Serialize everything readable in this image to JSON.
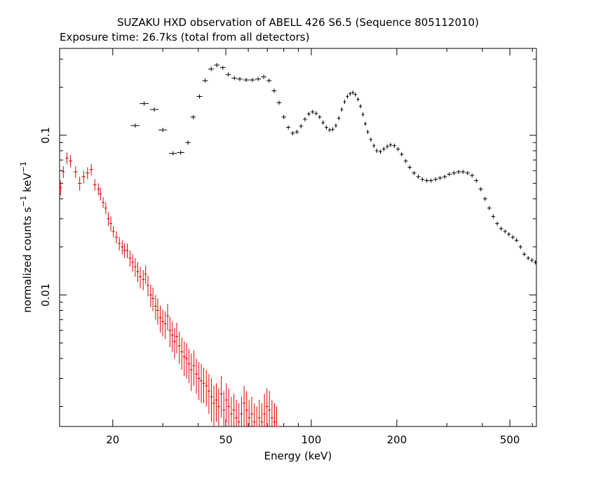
{
  "title": "SUZAKU HXD observation of ABELL 426 S6.5 (Sequence 805112010)",
  "subtitle": "Exposure time: 26.7ks (total from all detectors)",
  "chart_data": {
    "type": "scatter",
    "title": "SUZAKU HXD observation of ABELL 426 S6.5 (Sequence 805112010)",
    "subtitle": "Exposure time: 26.7ks (total from all detectors)",
    "xlabel": "Energy (keV)",
    "ylabel": "normalized counts s-1 keV-1",
    "ylabel_parts": {
      "pre": "normalized counts s",
      "sup1": "−1",
      "mid": " keV",
      "sup2": "−1"
    },
    "x_scale": "log",
    "y_scale": "log",
    "xlim": [
      13,
      620
    ],
    "ylim": [
      0.0015,
      0.35
    ],
    "x_ticks": [
      20,
      50,
      100,
      200,
      500
    ],
    "x_tick_labels": [
      "20",
      "50",
      "100",
      "200",
      "500"
    ],
    "y_ticks": [
      0.01,
      0.1
    ],
    "y_tick_labels": [
      "0.01",
      "0.1"
    ],
    "grid": false,
    "series": [
      {
        "color": "#dd0000",
        "points": [
          [
            13.1,
            0.047,
            0.005
          ],
          [
            13.4,
            0.059,
            0.005
          ],
          [
            13.8,
            0.072,
            0.006
          ],
          [
            14.2,
            0.069,
            0.006
          ],
          [
            14.8,
            0.059,
            0.005
          ],
          [
            15.3,
            0.05,
            0.005
          ],
          [
            15.8,
            0.055,
            0.005
          ],
          [
            16.3,
            0.058,
            0.005
          ],
          [
            16.8,
            0.061,
            0.005
          ],
          [
            17.3,
            0.049,
            0.004
          ],
          [
            17.8,
            0.046,
            0.004
          ],
          [
            18.1,
            0.043,
            0.004
          ],
          [
            18.5,
            0.038,
            0.003
          ],
          [
            18.9,
            0.035,
            0.003
          ],
          [
            19.3,
            0.03,
            0.003
          ],
          [
            19.7,
            0.028,
            0.003
          ],
          [
            20.1,
            0.025,
            0.002
          ],
          [
            20.6,
            0.023,
            0.002
          ],
          [
            21.1,
            0.021,
            0.002
          ],
          [
            21.6,
            0.02,
            0.002
          ],
          [
            22.0,
            0.019,
            0.002
          ],
          [
            22.5,
            0.019,
            0.002
          ],
          [
            23.0,
            0.017,
            0.002
          ],
          [
            23.5,
            0.016,
            0.002
          ],
          [
            24.0,
            0.015,
            0.002
          ],
          [
            24.5,
            0.014,
            0.002
          ],
          [
            25.0,
            0.013,
            0.002
          ],
          [
            25.6,
            0.0125,
            0.0018
          ],
          [
            26.1,
            0.0135,
            0.0018
          ],
          [
            26.6,
            0.0115,
            0.0017
          ],
          [
            27.2,
            0.01,
            0.0016
          ],
          [
            27.7,
            0.0095,
            0.0016
          ],
          [
            28.3,
            0.0085,
            0.0015
          ],
          [
            28.8,
            0.008,
            0.0015
          ],
          [
            29.4,
            0.0072,
            0.0014
          ],
          [
            30.0,
            0.0068,
            0.0013
          ],
          [
            30.6,
            0.0066,
            0.0013
          ],
          [
            31.2,
            0.0074,
            0.0014
          ],
          [
            31.8,
            0.006,
            0.0013
          ],
          [
            32.4,
            0.0056,
            0.0012
          ],
          [
            33.0,
            0.0051,
            0.0011
          ],
          [
            33.6,
            0.0055,
            0.0012
          ],
          [
            34.3,
            0.0048,
            0.0011
          ],
          [
            35.0,
            0.0044,
            0.001
          ],
          [
            35.7,
            0.0041,
            0.001
          ],
          [
            36.4,
            0.004,
            0.001
          ],
          [
            37.1,
            0.0037,
            0.0009
          ],
          [
            37.8,
            0.0034,
            0.0009
          ],
          [
            38.6,
            0.0036,
            0.0009
          ],
          [
            39.4,
            0.0032,
            0.0008
          ],
          [
            40.2,
            0.003,
            0.0008
          ],
          [
            41.0,
            0.0029,
            0.0008
          ],
          [
            41.8,
            0.0028,
            0.0007
          ],
          [
            42.7,
            0.0027,
            0.0007
          ],
          [
            43.6,
            0.0025,
            0.0007
          ],
          [
            44.5,
            0.0023,
            0.0007
          ],
          [
            45.4,
            0.0021,
            0.0006
          ],
          [
            46.3,
            0.0022,
            0.0006
          ],
          [
            47.2,
            0.002,
            0.0006
          ],
          [
            48.2,
            0.0024,
            0.0007
          ],
          [
            49.2,
            0.0019,
            0.0006
          ],
          [
            50.2,
            0.0022,
            0.0006
          ],
          [
            51.2,
            0.002,
            0.0006
          ],
          [
            52.3,
            0.0018,
            0.0005
          ],
          [
            53.4,
            0.0019,
            0.0005
          ],
          [
            54.5,
            0.0017,
            0.0005
          ],
          [
            55.6,
            0.0016,
            0.0005
          ],
          [
            56.8,
            0.0018,
            0.0005
          ],
          [
            58.0,
            0.0021,
            0.0006
          ],
          [
            59.2,
            0.0019,
            0.0006
          ],
          [
            60.4,
            0.0017,
            0.0005
          ],
          [
            61.7,
            0.0018,
            0.0005
          ],
          [
            63.0,
            0.0016,
            0.0005
          ],
          [
            64.3,
            0.0015,
            0.0005
          ],
          [
            65.6,
            0.0017,
            0.0005
          ],
          [
            67.0,
            0.0016,
            0.0005
          ],
          [
            68.4,
            0.0018,
            0.0006
          ],
          [
            69.8,
            0.002,
            0.0006
          ],
          [
            71.2,
            0.0019,
            0.0006
          ],
          [
            72.7,
            0.0017,
            0.0005
          ],
          [
            74.2,
            0.0016,
            0.0005
          ],
          [
            75.5,
            0.0015,
            0.0005
          ]
        ]
      },
      {
        "color": "#000000",
        "points": [
          [
            24.0,
            0.115,
            0.0
          ],
          [
            25.8,
            0.158,
            0.0
          ],
          [
            28.0,
            0.145,
            0.0
          ],
          [
            30.0,
            0.108,
            0.0
          ],
          [
            32.6,
            0.077,
            0.0
          ],
          [
            34.7,
            0.078,
            0.0
          ],
          [
            36.8,
            0.09,
            0.0
          ],
          [
            38.4,
            0.13,
            0.0
          ],
          [
            40.4,
            0.175,
            0.0
          ],
          [
            42.3,
            0.22,
            0.0
          ],
          [
            44.4,
            0.26,
            0.0
          ],
          [
            46.5,
            0.275,
            0.0
          ],
          [
            48.8,
            0.265,
            0.0
          ],
          [
            51.0,
            0.24,
            0.0
          ],
          [
            53.6,
            0.228,
            0.0
          ],
          [
            56.0,
            0.225,
            0.0
          ],
          [
            59.0,
            0.222,
            0.0
          ],
          [
            62.0,
            0.222,
            0.0
          ],
          [
            65.0,
            0.225,
            0.0
          ],
          [
            68.0,
            0.232,
            0.0
          ],
          [
            71.0,
            0.22,
            0.0
          ],
          [
            74.0,
            0.19,
            0.0
          ],
          [
            77.0,
            0.16,
            0.0
          ],
          [
            80.0,
            0.13,
            0.0
          ],
          [
            83.0,
            0.112,
            0.0
          ],
          [
            86.0,
            0.103,
            0.0
          ],
          [
            89.0,
            0.105,
            0.0
          ],
          [
            92.0,
            0.114,
            0.0
          ],
          [
            95.0,
            0.126,
            0.0
          ],
          [
            98.0,
            0.136,
            0.0
          ],
          [
            101.0,
            0.14,
            0.0
          ],
          [
            104.0,
            0.137,
            0.0
          ],
          [
            107.0,
            0.13,
            0.0
          ],
          [
            110.0,
            0.12,
            0.0
          ],
          [
            113.0,
            0.112,
            0.0
          ],
          [
            116.0,
            0.108,
            0.0
          ],
          [
            119.0,
            0.109,
            0.0
          ],
          [
            122.0,
            0.115,
            0.0
          ],
          [
            125.0,
            0.128,
            0.0
          ],
          [
            128.0,
            0.145,
            0.0
          ],
          [
            131.0,
            0.162,
            0.0
          ],
          [
            134.0,
            0.175,
            0.0
          ],
          [
            137.0,
            0.182,
            0.0
          ],
          [
            140.0,
            0.185,
            0.0
          ],
          [
            143.0,
            0.18,
            0.0
          ],
          [
            146.0,
            0.168,
            0.0
          ],
          [
            149.0,
            0.152,
            0.0
          ],
          [
            152.0,
            0.135,
            0.0
          ],
          [
            155.0,
            0.118,
            0.0
          ],
          [
            158.0,
            0.105,
            0.0
          ],
          [
            162.0,
            0.094,
            0.0
          ],
          [
            166.0,
            0.086,
            0.0
          ],
          [
            170.0,
            0.08,
            0.0
          ],
          [
            175.0,
            0.079,
            0.0
          ],
          [
            180.0,
            0.082,
            0.0
          ],
          [
            185.0,
            0.085,
            0.0
          ],
          [
            190.0,
            0.087,
            0.0
          ],
          [
            196.0,
            0.086,
            0.0
          ],
          [
            202.0,
            0.082,
            0.0
          ],
          [
            208.0,
            0.076,
            0.0
          ],
          [
            215.0,
            0.069,
            0.0
          ],
          [
            222.0,
            0.063,
            0.0
          ],
          [
            230.0,
            0.058,
            0.0
          ],
          [
            238.0,
            0.055,
            0.0
          ],
          [
            246.0,
            0.053,
            0.0
          ],
          [
            255.0,
            0.052,
            0.0
          ],
          [
            264.0,
            0.052,
            0.0
          ],
          [
            274.0,
            0.053,
            0.0
          ],
          [
            284.0,
            0.054,
            0.0
          ],
          [
            295.0,
            0.055,
            0.0
          ],
          [
            306.0,
            0.057,
            0.0
          ],
          [
            318.0,
            0.058,
            0.0
          ],
          [
            330.0,
            0.059,
            0.0
          ],
          [
            342.0,
            0.059,
            0.0
          ],
          [
            355.0,
            0.058,
            0.0
          ],
          [
            368.0,
            0.056,
            0.0
          ],
          [
            381.0,
            0.052,
            0.0
          ],
          [
            395.0,
            0.046,
            0.0
          ],
          [
            409.0,
            0.04,
            0.0
          ],
          [
            423.0,
            0.035,
            0.0
          ],
          [
            437.0,
            0.031,
            0.0
          ],
          [
            451.0,
            0.028,
            0.0
          ],
          [
            466.0,
            0.026,
            0.0
          ],
          [
            481.0,
            0.025,
            0.0
          ],
          [
            496.0,
            0.024,
            0.0
          ],
          [
            512.0,
            0.023,
            0.0
          ],
          [
            528.0,
            0.022,
            0.0
          ],
          [
            545.0,
            0.02,
            0.0
          ],
          [
            562.0,
            0.018,
            0.0
          ],
          [
            580.0,
            0.017,
            0.0
          ],
          [
            598.0,
            0.0165,
            0.0
          ],
          [
            615.0,
            0.016,
            0.0
          ]
        ]
      }
    ]
  }
}
